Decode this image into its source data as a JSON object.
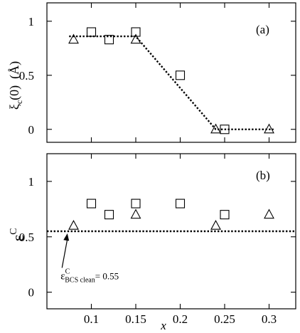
{
  "chart_data": [
    {
      "panel_label": "(a)",
      "type": "scatter",
      "ylabel_main": "ξ",
      "ylabel_sub": "c",
      "ylabel_rest": "(0)  (Å)",
      "xlim": [
        0.05,
        0.33
      ],
      "ylim": [
        -0.12,
        1.17
      ],
      "yticks": [
        0,
        0.5,
        1
      ],
      "ytick_labels": [
        "0",
        "0.5",
        "1"
      ],
      "xticks": [
        0.1,
        0.15,
        0.2,
        0.25,
        0.3
      ],
      "series": [
        {
          "marker": "square",
          "x": [
            0.1,
            0.12,
            0.15,
            0.2,
            0.25
          ],
          "y": [
            0.9,
            0.83,
            0.9,
            0.5,
            0.0
          ]
        },
        {
          "marker": "triangle",
          "x": [
            0.08,
            0.15,
            0.24,
            0.3
          ],
          "y": [
            0.83,
            0.83,
            0.0,
            0.0
          ]
        }
      ],
      "dashed_line": {
        "x": [
          0.075,
          0.15,
          0.24,
          0.305
        ],
        "y": [
          0.86,
          0.86,
          0.0,
          0.0
        ]
      }
    },
    {
      "panel_label": "(b)",
      "type": "scatter",
      "ylabel_main": "ε",
      "ylabel_sup": "C",
      "xlim": [
        0.05,
        0.33
      ],
      "ylim": [
        -0.15,
        1.25
      ],
      "yticks": [
        0,
        0.5,
        1
      ],
      "ytick_labels": [
        "0",
        "0.5",
        "1"
      ],
      "xticks": [
        0.1,
        0.15,
        0.2,
        0.25,
        0.3
      ],
      "xtick_labels": [
        "0.1",
        "0.15",
        "0.2",
        "0.25",
        "0.3"
      ],
      "xlabel": "x",
      "series": [
        {
          "marker": "square",
          "x": [
            0.1,
            0.12,
            0.15,
            0.2,
            0.25
          ],
          "y": [
            0.8,
            0.7,
            0.8,
            0.8,
            0.7
          ]
        },
        {
          "marker": "triangle",
          "x": [
            0.08,
            0.15,
            0.24,
            0.3
          ],
          "y": [
            0.6,
            0.7,
            0.6,
            0.7
          ]
        }
      ],
      "hline": {
        "y": 0.55
      },
      "annotation": {
        "main": "ε",
        "sup": "C",
        "sub": "BCS clean",
        "value": "= 0.55",
        "arrow_to": {
          "x": 0.073,
          "y": 0.55
        },
        "arrow_from": {
          "x": 0.067,
          "y": 0.22
        }
      }
    }
  ]
}
